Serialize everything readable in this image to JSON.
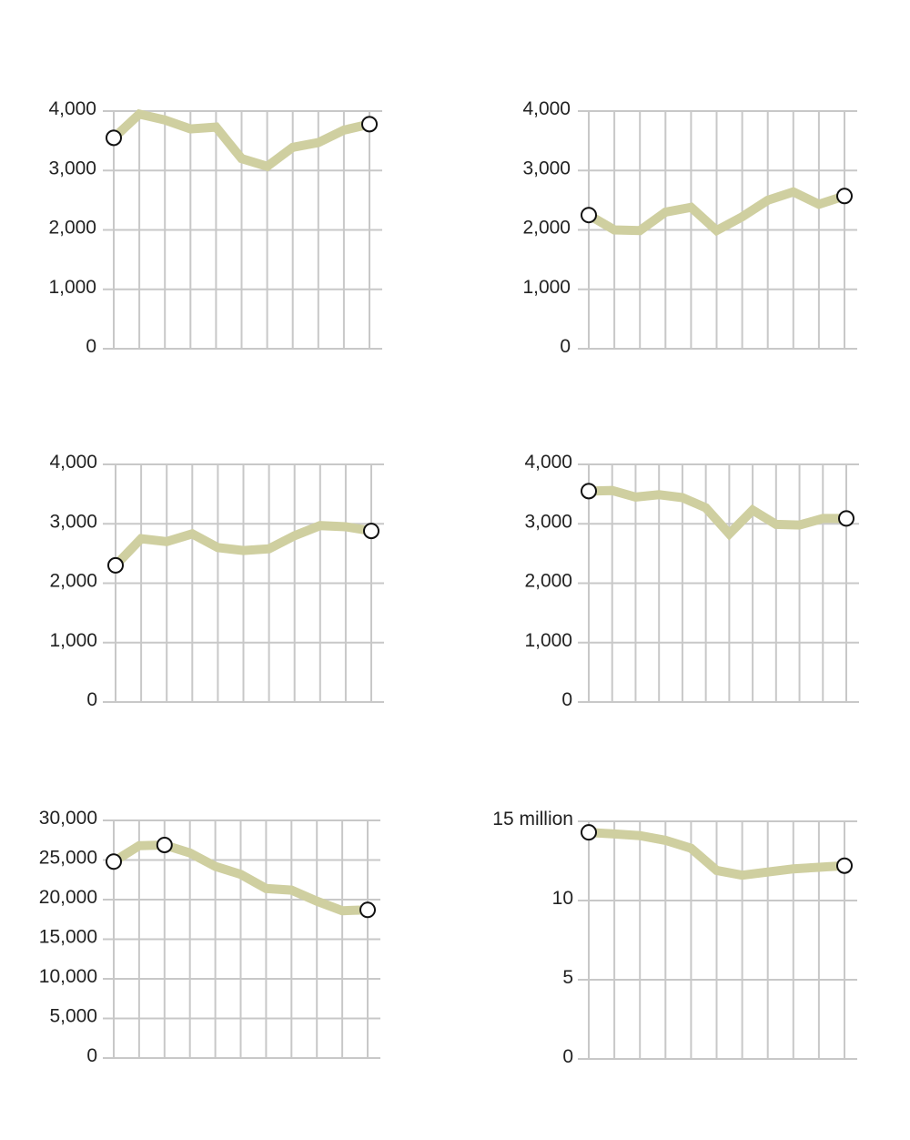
{
  "style": {
    "line_color": "#cfcfa0",
    "grid_color": "#c8c8c8",
    "marker_fill": "#ffffff",
    "marker_stroke": "#111111",
    "text_color": "#222222"
  },
  "chart_data": [
    {
      "type": "line",
      "x": [
        1,
        2,
        3,
        4,
        5,
        6,
        7,
        8,
        9,
        10,
        11
      ],
      "values": [
        3550,
        3950,
        3850,
        3700,
        3730,
        3200,
        3070,
        3390,
        3470,
        3680,
        3780
      ],
      "markers": [
        0,
        10
      ],
      "ylim": [
        0,
        4000
      ],
      "yticks": [
        0,
        1000,
        2000,
        3000,
        4000
      ],
      "ytick_labels": [
        "0",
        "1,000",
        "2,000",
        "3,000",
        "4,000"
      ],
      "grid": true,
      "title": "",
      "xlabel": "",
      "ylabel": ""
    },
    {
      "type": "line",
      "x": [
        1,
        2,
        3,
        4,
        5,
        6,
        7,
        8,
        9,
        10,
        11
      ],
      "values": [
        2250,
        2000,
        1990,
        2300,
        2380,
        1990,
        2220,
        2500,
        2640,
        2430,
        2570
      ],
      "markers": [
        0,
        10
      ],
      "ylim": [
        0,
        4000
      ],
      "yticks": [
        0,
        1000,
        2000,
        3000,
        4000
      ],
      "ytick_labels": [
        "0",
        "1,000",
        "2,000",
        "3,000",
        "4,000"
      ],
      "grid": true,
      "title": "",
      "xlabel": "",
      "ylabel": ""
    },
    {
      "type": "line",
      "x": [
        1,
        2,
        3,
        4,
        5,
        6,
        7,
        8,
        9,
        10,
        11
      ],
      "values": [
        2300,
        2750,
        2700,
        2830,
        2600,
        2550,
        2580,
        2800,
        2970,
        2950,
        2880
      ],
      "markers": [
        0,
        10
      ],
      "ylim": [
        0,
        4000
      ],
      "yticks": [
        0,
        1000,
        2000,
        3000,
        4000
      ],
      "ytick_labels": [
        "0",
        "1,000",
        "2,000",
        "3,000",
        "4,000"
      ],
      "grid": true,
      "title": "",
      "xlabel": "",
      "ylabel": ""
    },
    {
      "type": "line",
      "x": [
        1,
        2,
        3,
        4,
        5,
        6,
        7,
        8,
        9,
        10,
        11,
        12
      ],
      "values": [
        3550,
        3560,
        3450,
        3490,
        3440,
        3270,
        2830,
        3230,
        2990,
        2980,
        3090,
        3090
      ],
      "markers": [
        0,
        11
      ],
      "ylim": [
        0,
        4000
      ],
      "yticks": [
        0,
        1000,
        2000,
        3000,
        4000
      ],
      "ytick_labels": [
        "0",
        "1,000",
        "2,000",
        "3,000",
        "4,000"
      ],
      "grid": true,
      "title": "",
      "xlabel": "",
      "ylabel": ""
    },
    {
      "type": "line",
      "x": [
        1,
        2,
        3,
        4,
        5,
        6,
        7,
        8,
        9,
        10,
        11
      ],
      "values": [
        24800,
        26800,
        26900,
        25900,
        24200,
        23200,
        21400,
        21200,
        19800,
        18600,
        18700
      ],
      "markers": [
        0,
        2,
        10
      ],
      "ylim": [
        0,
        30000
      ],
      "yticks": [
        0,
        5000,
        10000,
        15000,
        20000,
        25000,
        30000
      ],
      "ytick_labels": [
        "0",
        "5,000",
        "10,000",
        "15,000",
        "20,000",
        "25,000",
        "30,000"
      ],
      "grid": true,
      "title": "",
      "xlabel": "",
      "ylabel": ""
    },
    {
      "type": "line",
      "x": [
        1,
        2,
        3,
        4,
        5,
        6,
        7,
        8,
        9,
        10,
        11
      ],
      "values": [
        14.3,
        14.2,
        14.1,
        13.8,
        13.3,
        11.9,
        11.6,
        11.8,
        12.0,
        12.1,
        12.2
      ],
      "markers": [
        0,
        10
      ],
      "ylim": [
        0,
        15
      ],
      "yticks": [
        0,
        5,
        10,
        15
      ],
      "ytick_labels": [
        "0",
        "5",
        "10",
        "15 million"
      ],
      "grid": true,
      "title": "",
      "xlabel": "",
      "ylabel": ""
    }
  ]
}
